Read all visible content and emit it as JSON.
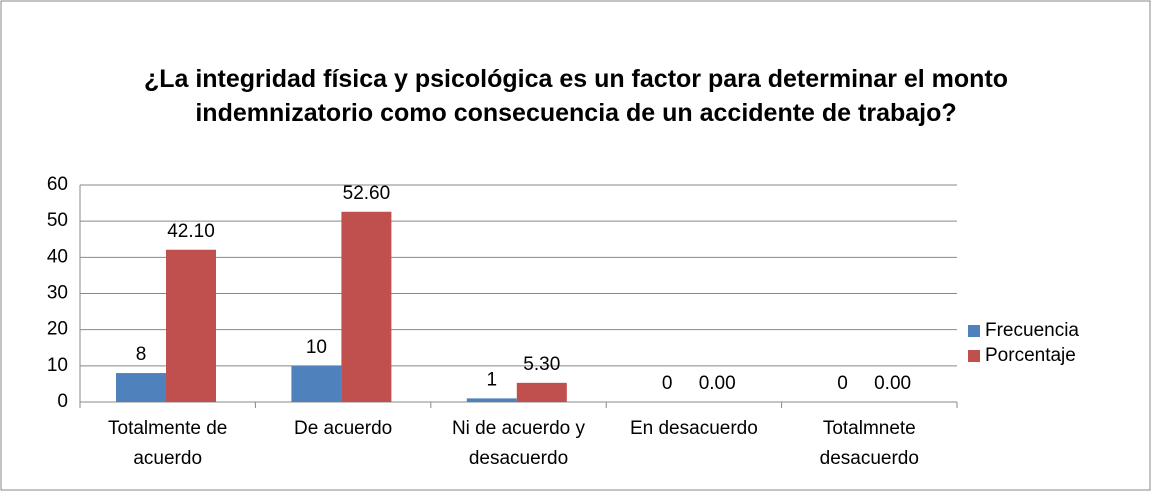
{
  "chart_data": {
    "type": "bar",
    "title": "¿La integridad física y psicológica es un factor para determinar el monto indemnizatorio como consecuencia de un accidente de trabajo?",
    "categories": [
      "Totalmente de acuerdo",
      "De acuerdo",
      "Ni de acuerdo y desacuerdo",
      "En desacuerdo",
      "Totalmnete desacuerdo"
    ],
    "series": [
      {
        "name": "Frecuencia",
        "color": "#4f81bd",
        "values": [
          8,
          10,
          1,
          0,
          0
        ]
      },
      {
        "name": "Porcentaje",
        "color": "#c0504d",
        "values": [
          42.1,
          52.6,
          5.3,
          0,
          0
        ],
        "value_labels": [
          "42.10",
          "52.60",
          "5.30",
          "0.00",
          "0.00"
        ]
      }
    ],
    "ylim": [
      0,
      60
    ],
    "yticks": [
      0,
      10,
      20,
      30,
      40,
      50,
      60
    ],
    "grid": true,
    "legend": "right"
  }
}
